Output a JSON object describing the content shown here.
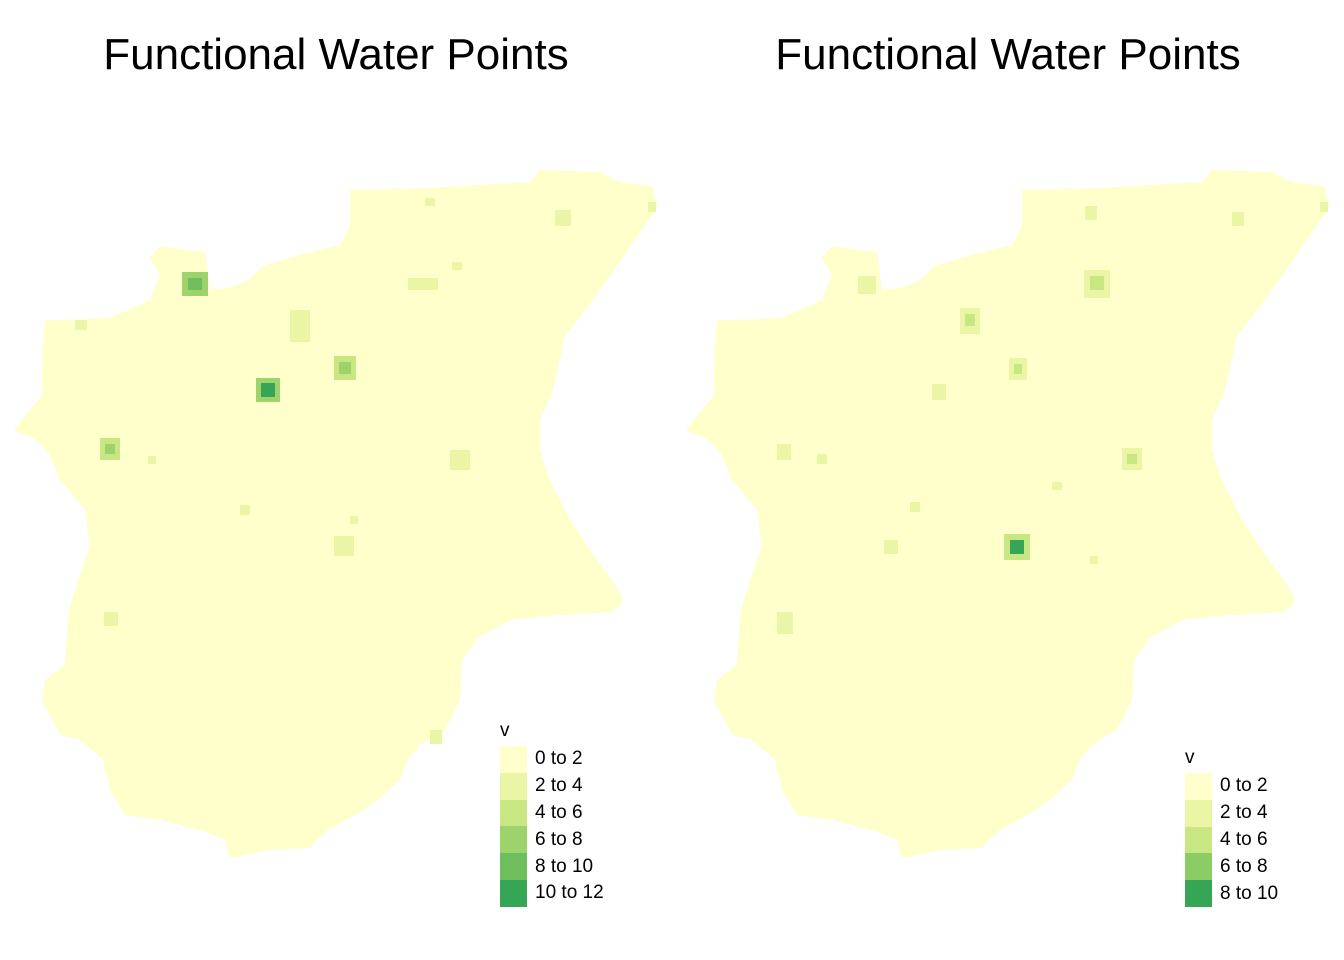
{
  "maps": [
    {
      "id": "left",
      "title": "Functional Water Points",
      "legend": {
        "title": "v",
        "classes": [
          {
            "label": "0 to 2",
            "color": "#ffffcc"
          },
          {
            "label": "2 to 4",
            "color": "#eaf5a5"
          },
          {
            "label": "4 to 6",
            "color": "#c8e681"
          },
          {
            "label": "6 to 8",
            "color": "#9dd36a"
          },
          {
            "label": "8 to 10",
            "color": "#6fbe5e"
          },
          {
            "label": "10 to 12",
            "color": "#37a556"
          }
        ]
      }
    },
    {
      "id": "right",
      "title": "Functional Water Points",
      "legend": {
        "title": "v",
        "classes": [
          {
            "label": "0 to 2",
            "color": "#ffffcc"
          },
          {
            "label": "2 to 4",
            "color": "#eaf5a5"
          },
          {
            "label": "4 to 6",
            "color": "#c8e681"
          },
          {
            "label": "6 to 8",
            "color": "#8ccc65"
          },
          {
            "label": "8 to 10",
            "color": "#37a556"
          }
        ]
      }
    }
  ]
}
